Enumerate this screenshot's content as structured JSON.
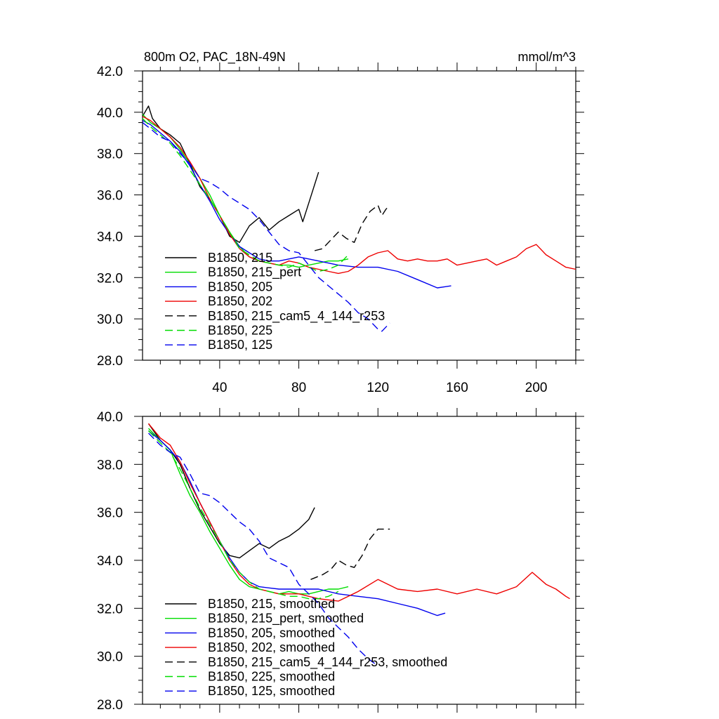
{
  "chart_data": [
    {
      "type": "line",
      "title": "800m O2, PAC_18N-49N",
      "units": "mmol/m^3",
      "xlabel": "",
      "ylabel": "",
      "xlim": [
        1,
        220
      ],
      "ylim": [
        28,
        42
      ],
      "yticks": [
        "28.0",
        "30.0",
        "32.0",
        "34.0",
        "36.0",
        "38.0",
        "40.0",
        "42.0"
      ],
      "xticks": [
        "40",
        "80",
        "120",
        "160",
        "200"
      ],
      "legend_position": "bottom-left",
      "series": [
        {
          "name": "B1850, 215",
          "color": "#000000",
          "dash": "solid",
          "x": [
            1,
            4,
            6,
            10,
            15,
            20,
            25,
            30,
            35,
            40,
            45,
            50,
            55,
            60,
            65,
            70,
            75,
            80,
            82,
            85,
            87,
            90
          ],
          "y": [
            39.8,
            40.3,
            39.7,
            39.2,
            38.9,
            38.5,
            37.5,
            36.4,
            35.8,
            35.0,
            34.0,
            33.7,
            34.5,
            34.9,
            34.3,
            34.7,
            35.0,
            35.3,
            34.7,
            35.6,
            36.2,
            37.1
          ]
        },
        {
          "name": "B1850, 215_pert",
          "color": "#00dd00",
          "dash": "solid",
          "x": [
            1,
            5,
            10,
            15,
            20,
            25,
            30,
            35,
            40,
            45,
            50,
            55,
            60,
            65,
            70,
            75,
            80,
            85,
            90,
            95,
            100,
            105
          ],
          "y": [
            39.9,
            39.5,
            39.2,
            38.8,
            38.2,
            37.5,
            36.8,
            36.0,
            35.0,
            34.2,
            33.5,
            33.0,
            32.8,
            32.7,
            32.6,
            32.6,
            32.5,
            32.6,
            32.7,
            32.8,
            32.8,
            32.9
          ]
        },
        {
          "name": "B1850, 205",
          "color": "#0000ee",
          "dash": "solid",
          "x": [
            1,
            5,
            10,
            15,
            20,
            25,
            30,
            35,
            40,
            45,
            50,
            55,
            60,
            65,
            70,
            75,
            80,
            90,
            100,
            110,
            120,
            130,
            140,
            150,
            157
          ],
          "y": [
            39.6,
            39.4,
            39.0,
            38.6,
            38.1,
            37.4,
            36.5,
            35.7,
            34.8,
            34.1,
            33.5,
            33.2,
            32.9,
            32.8,
            32.8,
            32.9,
            33.0,
            32.8,
            32.6,
            32.5,
            32.5,
            32.3,
            31.9,
            31.5,
            31.6
          ]
        },
        {
          "name": "B1850, 202",
          "color": "#ee0000",
          "dash": "solid",
          "x": [
            1,
            5,
            10,
            15,
            20,
            25,
            30,
            35,
            40,
            45,
            50,
            55,
            60,
            65,
            70,
            75,
            80,
            85,
            90,
            95,
            100,
            105,
            110,
            115,
            120,
            125,
            130,
            135,
            140,
            145,
            150,
            155,
            160,
            165,
            170,
            175,
            180,
            185,
            190,
            195,
            200,
            205,
            210,
            215,
            220
          ],
          "y": [
            39.8,
            39.6,
            39.2,
            38.8,
            38.3,
            37.6,
            36.8,
            35.8,
            35.0,
            34.1,
            33.4,
            33.0,
            32.8,
            32.7,
            32.6,
            32.8,
            32.7,
            32.5,
            32.4,
            32.3,
            32.2,
            32.3,
            32.6,
            33.0,
            33.2,
            33.3,
            32.9,
            32.8,
            32.9,
            32.8,
            32.8,
            32.9,
            32.6,
            32.7,
            32.8,
            32.9,
            32.6,
            32.8,
            33.0,
            33.4,
            33.6,
            33.1,
            32.8,
            32.5,
            32.4
          ]
        },
        {
          "name": "B1850, 215_cam5_4_144_r253",
          "color": "#000000",
          "dash": "dashed",
          "x": [
            88,
            92,
            96,
            100,
            104,
            108,
            112,
            116,
            120,
            122,
            124,
            126
          ],
          "y": [
            33.3,
            33.4,
            33.8,
            34.2,
            33.9,
            33.7,
            34.6,
            35.2,
            35.5,
            35.0,
            35.3,
            35.5
          ]
        },
        {
          "name": "B1850, 225",
          "color": "#00dd00",
          "dash": "dashed",
          "x": [
            1,
            5,
            10,
            15,
            20,
            25,
            30,
            35,
            40,
            45,
            50,
            55,
            60,
            65,
            70,
            75,
            80,
            85,
            90,
            95,
            100,
            105
          ],
          "y": [
            39.7,
            39.3,
            38.9,
            38.5,
            37.9,
            37.2,
            36.5,
            35.8,
            35.0,
            34.2,
            33.4,
            33.1,
            32.8,
            32.7,
            32.6,
            32.5,
            32.7,
            32.5,
            32.3,
            32.4,
            32.6,
            33.1
          ]
        },
        {
          "name": "B1850, 125",
          "color": "#0000ee",
          "dash": "dashed",
          "x": [
            1,
            5,
            10,
            15,
            20,
            25,
            30,
            35,
            40,
            45,
            50,
            55,
            60,
            65,
            70,
            75,
            80,
            85,
            90,
            95,
            100,
            105,
            110,
            115,
            120,
            122,
            126
          ],
          "y": [
            39.5,
            39.2,
            38.8,
            38.6,
            38.0,
            37.5,
            36.8,
            36.6,
            36.3,
            35.9,
            35.6,
            35.3,
            34.8,
            34.2,
            33.6,
            33.3,
            33.2,
            32.6,
            32.0,
            31.6,
            31.2,
            30.8,
            30.3,
            30.0,
            29.5,
            29.4,
            29.8
          ]
        }
      ]
    },
    {
      "type": "line",
      "title": "",
      "xlabel": "",
      "ylabel": "",
      "xlim": [
        1,
        220
      ],
      "ylim": [
        28,
        40
      ],
      "yticks": [
        "28.0",
        "30.0",
        "32.0",
        "34.0",
        "36.0",
        "38.0",
        "40.0"
      ],
      "xticks": [],
      "legend_position": "bottom-left",
      "series": [
        {
          "name": "B1850, 215, smoothed",
          "color": "#000000",
          "dash": "solid",
          "x": [
            4,
            10,
            15,
            20,
            25,
            30,
            35,
            40,
            45,
            50,
            55,
            60,
            65,
            70,
            75,
            80,
            85,
            88
          ],
          "y": [
            39.7,
            39.0,
            38.6,
            38.0,
            37.0,
            36.1,
            35.4,
            34.7,
            34.2,
            34.1,
            34.4,
            34.7,
            34.5,
            34.8,
            35.0,
            35.3,
            35.7,
            36.2
          ]
        },
        {
          "name": "B1850, 215_pert, smoothed",
          "color": "#00dd00",
          "dash": "solid",
          "x": [
            4,
            10,
            15,
            20,
            25,
            30,
            35,
            40,
            45,
            50,
            55,
            60,
            65,
            70,
            75,
            80,
            85,
            90,
            95,
            100,
            105
          ],
          "y": [
            39.5,
            39.0,
            38.6,
            37.6,
            36.7,
            36.0,
            35.2,
            34.5,
            33.8,
            33.2,
            32.9,
            32.8,
            32.7,
            32.6,
            32.7,
            32.6,
            32.6,
            32.7,
            32.8,
            32.8,
            32.9
          ]
        },
        {
          "name": "B1850, 205, smoothed",
          "color": "#0000ee",
          "dash": "solid",
          "x": [
            4,
            10,
            15,
            20,
            25,
            30,
            35,
            40,
            45,
            50,
            55,
            60,
            70,
            80,
            90,
            100,
            110,
            120,
            130,
            140,
            150,
            154
          ],
          "y": [
            39.4,
            39.0,
            38.6,
            38.1,
            37.3,
            36.4,
            35.6,
            34.8,
            34.1,
            33.5,
            33.1,
            32.9,
            32.8,
            32.8,
            32.8,
            32.6,
            32.5,
            32.4,
            32.2,
            32.0,
            31.7,
            31.8
          ]
        },
        {
          "name": "B1850, 202, smoothed",
          "color": "#ee0000",
          "dash": "solid",
          "x": [
            4,
            10,
            15,
            20,
            25,
            30,
            35,
            40,
            45,
            50,
            55,
            60,
            65,
            70,
            80,
            90,
            100,
            110,
            120,
            130,
            140,
            150,
            160,
            170,
            180,
            190,
            198,
            205,
            210,
            215,
            217
          ],
          "y": [
            39.7,
            39.1,
            38.8,
            38.1,
            37.2,
            36.4,
            35.6,
            34.8,
            34.0,
            33.4,
            33.0,
            32.8,
            32.7,
            32.6,
            32.6,
            32.4,
            32.3,
            32.7,
            33.2,
            32.8,
            32.7,
            32.8,
            32.6,
            32.8,
            32.6,
            32.9,
            33.5,
            33.0,
            32.8,
            32.5,
            32.4
          ]
        },
        {
          "name": "B1850, 215_cam5_4_144_r253, smoothed",
          "color": "#000000",
          "dash": "dashed",
          "x": [
            86,
            92,
            96,
            100,
            104,
            108,
            112,
            116,
            120,
            124,
            126
          ],
          "y": [
            33.2,
            33.4,
            33.6,
            34.0,
            33.8,
            33.7,
            34.2,
            34.9,
            35.3,
            35.3,
            35.3
          ]
        },
        {
          "name": "B1850, 225, smoothed",
          "color": "#00dd00",
          "dash": "dashed",
          "x": [
            4,
            10,
            15,
            20,
            25,
            30,
            35,
            40,
            45,
            50,
            55,
            60,
            65,
            70,
            75,
            80,
            85,
            90,
            95,
            100
          ],
          "y": [
            39.4,
            38.9,
            38.5,
            37.8,
            37.0,
            36.2,
            35.5,
            34.8,
            34.0,
            33.5,
            33.1,
            32.8,
            32.7,
            32.6,
            32.5,
            32.5,
            32.4,
            32.4,
            32.5,
            32.7
          ]
        },
        {
          "name": "B1850, 125, smoothed",
          "color": "#0000ee",
          "dash": "dashed",
          "x": [
            4,
            10,
            15,
            20,
            25,
            30,
            35,
            40,
            45,
            50,
            55,
            60,
            65,
            70,
            75,
            80,
            85,
            90,
            95,
            100,
            105,
            110,
            115,
            120
          ],
          "y": [
            39.3,
            38.8,
            38.5,
            38.3,
            37.6,
            36.8,
            36.7,
            36.4,
            36.0,
            35.6,
            35.3,
            34.8,
            34.1,
            33.9,
            33.7,
            33.0,
            32.6,
            32.2,
            31.6,
            31.2,
            30.8,
            30.3,
            29.9,
            29.6
          ]
        }
      ]
    }
  ]
}
